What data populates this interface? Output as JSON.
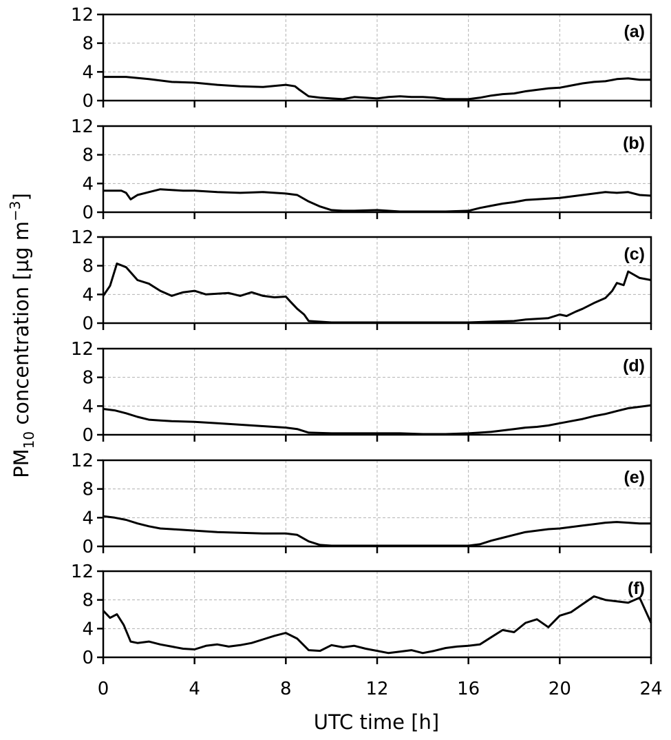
{
  "chart_data": {
    "type": "line",
    "xlabel": "UTC time [h]",
    "ylabel": {
      "prefix": "PM",
      "sub": "10",
      "mid": " concentration [µg m",
      "sup": "−3",
      "suffix": "]"
    },
    "xlim": [
      0,
      24
    ],
    "ylim": [
      0,
      12
    ],
    "xticks": [
      0,
      4,
      8,
      12,
      16,
      20,
      24
    ],
    "yticks": [
      0,
      4,
      8,
      12
    ],
    "grid": true,
    "line_color": "#000000",
    "panels": [
      {
        "label": "(a)",
        "x": [
          0,
          1,
          2,
          3,
          4,
          5,
          6,
          7,
          8,
          8.4,
          8.6,
          9,
          9.5,
          10,
          10.5,
          11,
          11.5,
          12,
          12.5,
          13,
          13.5,
          14,
          14.5,
          15,
          15.5,
          16,
          16.5,
          17,
          17.5,
          18,
          18.5,
          19,
          19.5,
          20,
          20.5,
          21,
          21.5,
          22,
          22.5,
          23,
          23.5,
          24
        ],
        "y": [
          3.3,
          3.3,
          3.0,
          2.6,
          2.5,
          2.2,
          2.0,
          1.9,
          2.2,
          2.0,
          1.5,
          0.6,
          0.4,
          0.3,
          0.2,
          0.5,
          0.4,
          0.3,
          0.5,
          0.6,
          0.5,
          0.5,
          0.4,
          0.2,
          0.2,
          0.2,
          0.4,
          0.7,
          0.9,
          1.0,
          1.3,
          1.5,
          1.7,
          1.8,
          2.1,
          2.4,
          2.6,
          2.7,
          3.0,
          3.1,
          2.9,
          2.9
        ]
      },
      {
        "label": "(b)",
        "x": [
          0,
          0.8,
          1,
          1.2,
          1.5,
          2,
          2.5,
          3,
          3.5,
          4,
          5,
          6,
          7,
          8,
          8.5,
          9,
          9.5,
          10,
          10.5,
          11,
          12,
          13,
          14,
          15,
          16,
          16.5,
          17,
          17.5,
          18,
          18.5,
          19,
          19.5,
          20,
          20.5,
          21,
          21.5,
          22,
          22.5,
          23,
          23.5,
          24
        ],
        "y": [
          3.0,
          3.0,
          2.7,
          1.8,
          2.4,
          2.8,
          3.2,
          3.1,
          3.0,
          3.0,
          2.8,
          2.7,
          2.8,
          2.6,
          2.4,
          1.5,
          0.8,
          0.3,
          0.2,
          0.2,
          0.3,
          0.1,
          0.1,
          0.1,
          0.2,
          0.6,
          0.9,
          1.2,
          1.4,
          1.7,
          1.8,
          1.9,
          2.0,
          2.2,
          2.4,
          2.6,
          2.8,
          2.7,
          2.8,
          2.4,
          2.3
        ]
      },
      {
        "label": "(c)",
        "x": [
          0,
          0.3,
          0.6,
          1,
          1.5,
          2,
          2.5,
          3,
          3.5,
          4,
          4.5,
          5,
          5.5,
          6,
          6.5,
          7,
          7.5,
          8,
          8.2,
          8.5,
          8.8,
          9,
          10,
          11,
          12,
          13,
          14,
          15,
          16,
          17,
          18,
          18.5,
          19,
          19.5,
          20,
          20.3,
          20.7,
          21,
          21.5,
          22,
          22.3,
          22.5,
          22.8,
          23,
          23.5,
          24
        ],
        "y": [
          3.8,
          5.2,
          8.3,
          7.8,
          6.0,
          5.5,
          4.5,
          3.8,
          4.3,
          4.5,
          4.0,
          4.1,
          4.2,
          3.8,
          4.3,
          3.8,
          3.6,
          3.7,
          3.0,
          2.0,
          1.2,
          0.3,
          0.1,
          0.1,
          0.1,
          0.1,
          0.1,
          0.1,
          0.1,
          0.2,
          0.3,
          0.5,
          0.6,
          0.7,
          1.2,
          1.0,
          1.6,
          2.0,
          2.8,
          3.5,
          4.5,
          5.6,
          5.3,
          7.2,
          6.3,
          6.0
        ]
      },
      {
        "label": "(d)",
        "x": [
          0,
          0.5,
          1,
          1.5,
          2,
          2.5,
          3,
          4,
          5,
          6,
          7,
          8,
          8.5,
          9,
          10,
          11,
          12,
          13,
          14,
          15,
          16,
          16.5,
          17,
          17.5,
          18,
          18.5,
          19,
          19.5,
          20,
          20.5,
          21,
          21.5,
          22,
          22.5,
          23,
          23.5,
          24
        ],
        "y": [
          3.6,
          3.4,
          3.0,
          2.5,
          2.1,
          2.0,
          1.9,
          1.8,
          1.6,
          1.4,
          1.2,
          1.0,
          0.8,
          0.3,
          0.2,
          0.2,
          0.2,
          0.2,
          0.1,
          0.1,
          0.2,
          0.3,
          0.4,
          0.6,
          0.8,
          1.0,
          1.1,
          1.3,
          1.6,
          1.9,
          2.2,
          2.6,
          2.9,
          3.3,
          3.7,
          3.9,
          4.1
        ]
      },
      {
        "label": "(e)",
        "x": [
          0,
          0.5,
          1,
          1.5,
          2,
          2.5,
          3,
          4,
          5,
          6,
          7,
          8,
          8.5,
          9,
          9.5,
          10,
          11,
          12,
          13,
          14,
          15,
          16,
          16.5,
          17,
          17.5,
          18,
          18.5,
          19,
          19.5,
          20,
          20.5,
          21,
          21.5,
          22,
          22.5,
          23,
          23.5,
          24
        ],
        "y": [
          4.2,
          4.0,
          3.7,
          3.2,
          2.8,
          2.5,
          2.4,
          2.2,
          2.0,
          1.9,
          1.8,
          1.8,
          1.6,
          0.7,
          0.2,
          0.1,
          0.1,
          0.1,
          0.1,
          0.1,
          0.1,
          0.1,
          0.3,
          0.8,
          1.2,
          1.6,
          2.0,
          2.2,
          2.4,
          2.5,
          2.7,
          2.9,
          3.1,
          3.3,
          3.4,
          3.3,
          3.2,
          3.2
        ]
      },
      {
        "label": "(f)",
        "x": [
          0,
          0.3,
          0.6,
          0.9,
          1.2,
          1.5,
          2,
          2.5,
          3,
          3.5,
          4,
          4.5,
          5,
          5.5,
          6,
          6.5,
          7,
          7.5,
          8,
          8.5,
          9,
          9.5,
          10,
          10.5,
          11,
          11.5,
          12,
          12.5,
          13,
          13.5,
          14,
          14.5,
          15,
          15.5,
          16,
          16.5,
          17,
          17.5,
          18,
          18.5,
          19,
          19.5,
          20,
          20.5,
          21,
          21.5,
          22,
          22.5,
          23,
          23.5,
          24
        ],
        "y": [
          6.5,
          5.5,
          6.0,
          4.5,
          2.2,
          2.0,
          2.2,
          1.8,
          1.5,
          1.2,
          1.1,
          1.6,
          1.8,
          1.5,
          1.7,
          2.0,
          2.5,
          3.0,
          3.4,
          2.6,
          1.0,
          0.9,
          1.7,
          1.4,
          1.6,
          1.2,
          0.9,
          0.6,
          0.8,
          1.0,
          0.6,
          0.9,
          1.3,
          1.5,
          1.6,
          1.8,
          2.8,
          3.8,
          3.5,
          4.8,
          5.3,
          4.2,
          5.8,
          6.3,
          7.4,
          8.5,
          8.0,
          7.8,
          7.6,
          8.3,
          4.8
        ]
      }
    ]
  }
}
